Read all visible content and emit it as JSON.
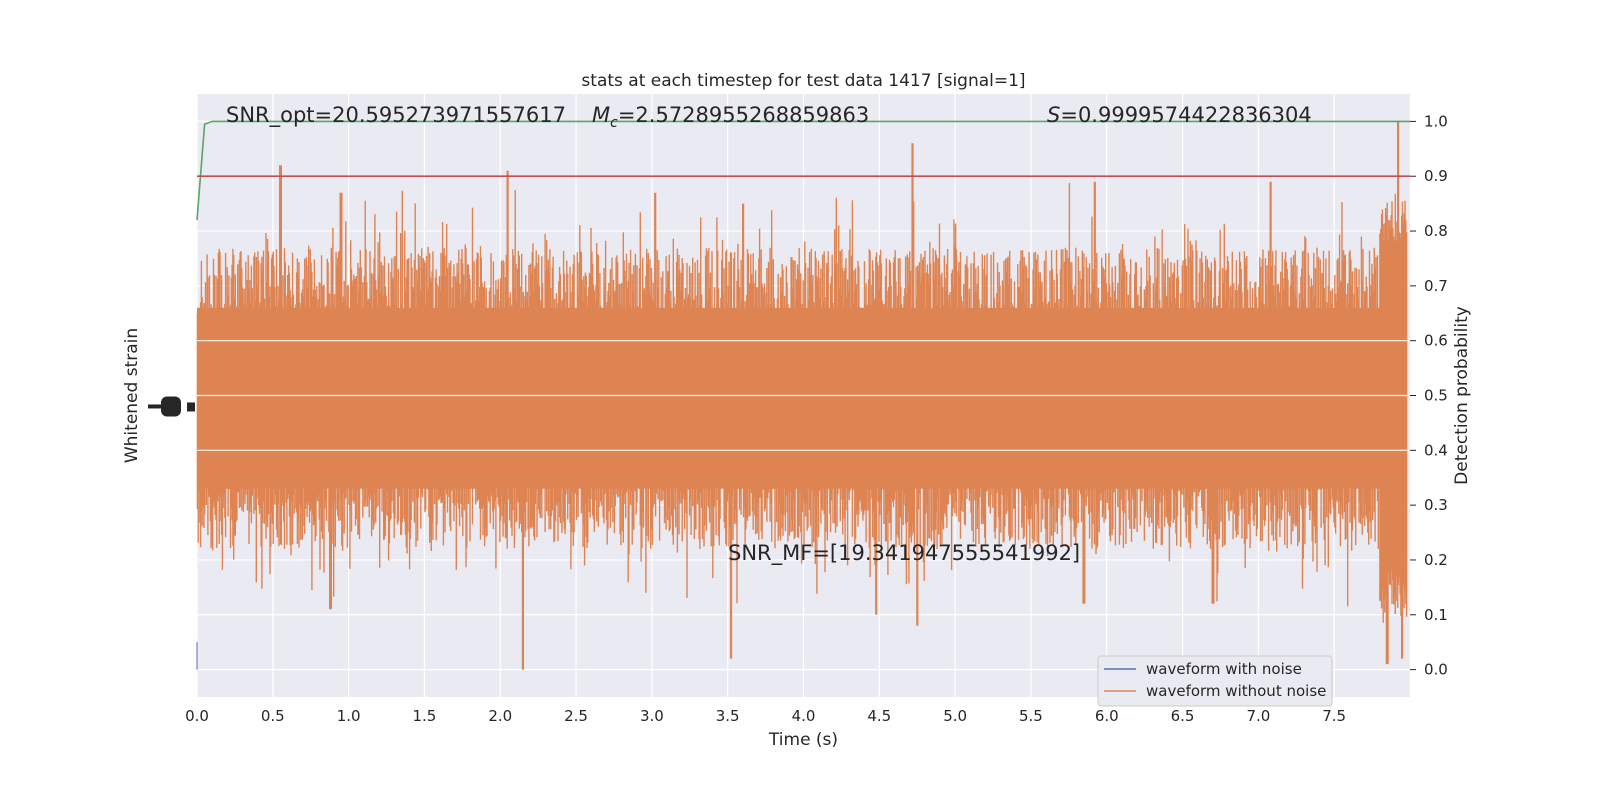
{
  "chart_data": {
    "type": "line",
    "title": "stats at each timestep for test data 1417 [signal=1]",
    "xlabel": "Time (s)",
    "ylabel_left": "Whitened strain",
    "ylabel_right": "Detection probability",
    "xlim": [
      0.0,
      8.0
    ],
    "x_ticks": [
      "0.0",
      "0.5",
      "1.0",
      "1.5",
      "2.0",
      "2.5",
      "3.0",
      "3.5",
      "4.0",
      "4.5",
      "5.0",
      "5.5",
      "6.0",
      "6.5",
      "7.0",
      "7.5"
    ],
    "x_tick_values": [
      0.0,
      0.5,
      1.0,
      1.5,
      2.0,
      2.5,
      3.0,
      3.5,
      4.0,
      4.5,
      5.0,
      5.5,
      6.0,
      6.5,
      7.0,
      7.5
    ],
    "ylim_right": [
      -0.05,
      1.05
    ],
    "y_right_ticks": [
      "0.0",
      "0.1",
      "0.2",
      "0.3",
      "0.4",
      "0.5",
      "0.6",
      "0.7",
      "0.8",
      "0.9",
      "1.0"
    ],
    "y_right_tick_values": [
      0.0,
      0.1,
      0.2,
      0.3,
      0.4,
      0.5,
      0.6,
      0.7,
      0.8,
      0.9,
      1.0
    ],
    "grid": true,
    "legend_position": "bottom-right",
    "annotations": {
      "snr_opt": "SNR_opt=20.595273971557617",
      "mc_sym": "M",
      "mc_sub": "c",
      "mc_val": "=2.5728955268859863",
      "s_sym": "S",
      "s_val": "=0.9999574422836304",
      "snr_mf": "SNR_MF=[19.341947555541992]"
    },
    "series": [
      {
        "name": "waveform with noise",
        "color": "#4c72b0"
      },
      {
        "name": "waveform without noise",
        "color": "#dd8452"
      },
      {
        "color": "#55a868",
        "x": [
          0.0,
          0.05,
          0.1,
          8.0
        ],
        "y": [
          0.82,
          0.995,
          1.0,
          1.0
        ]
      },
      {
        "color": "#c44e52",
        "x": [
          0.0,
          8.0
        ],
        "y": [
          0.9,
          0.9
        ]
      }
    ],
    "strain_envelope": {
      "center": 0.48,
      "typical_upper": 0.7,
      "typical_lower": 0.29,
      "peaks_upper": [
        {
          "x": 0.55,
          "y": 0.92
        },
        {
          "x": 2.05,
          "y": 0.91
        },
        {
          "x": 4.72,
          "y": 0.96
        },
        {
          "x": 5.92,
          "y": 0.89
        },
        {
          "x": 7.08,
          "y": 0.89
        },
        {
          "x": 7.92,
          "y": 1.0
        },
        {
          "x": 0.95,
          "y": 0.87
        },
        {
          "x": 3.02,
          "y": 0.87
        },
        {
          "x": 3.6,
          "y": 0.85
        }
      ],
      "peaks_lower": [
        {
          "x": 2.15,
          "y": 0.0
        },
        {
          "x": 3.52,
          "y": 0.02
        },
        {
          "x": 4.75,
          "y": 0.08
        },
        {
          "x": 4.48,
          "y": 0.1
        },
        {
          "x": 0.88,
          "y": 0.11
        },
        {
          "x": 7.85,
          "y": 0.01
        },
        {
          "x": 7.95,
          "y": 0.02
        },
        {
          "x": 5.85,
          "y": 0.12
        },
        {
          "x": 6.7,
          "y": 0.12
        }
      ]
    }
  }
}
